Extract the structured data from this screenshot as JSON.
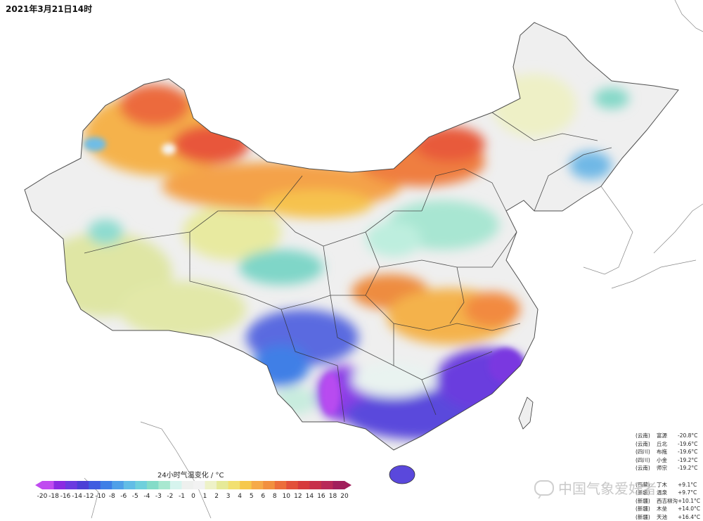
{
  "map": {
    "title": "2021年3月21日14时",
    "legend": {
      "title": "24小时气温变化 / °C",
      "ticks": [
        "-20",
        "-18",
        "-16",
        "-14",
        "-12",
        "-10",
        "-8",
        "-6",
        "-5",
        "-4",
        "-3",
        "-2",
        "-1",
        "0",
        "1",
        "2",
        "3",
        "4",
        "5",
        "6",
        "8",
        "10",
        "12",
        "14",
        "16",
        "18",
        "20"
      ],
      "colors": [
        "#c04cf0",
        "#8a2be2",
        "#6a3be0",
        "#4b3fd6",
        "#3f5ce0",
        "#3e7fe6",
        "#4fa0e8",
        "#62bde6",
        "#6fd0dc",
        "#84dcc8",
        "#a8e8d0",
        "#d6f4ee",
        "#eef0ee",
        "#f2f2f2",
        "#eef2c8",
        "#e6ea98",
        "#f2e070",
        "#f6c84c",
        "#f6aa48",
        "#f2903e",
        "#ec6e3a",
        "#e2503a",
        "#d63a3c",
        "#c72f4a",
        "#b82858",
        "#a11f5c"
      ]
    },
    "stats_cold": [
      {
        "region": "(云南)",
        "station": "富源",
        "value": "-20.8°C"
      },
      {
        "region": "(云南)",
        "station": "丘北",
        "value": "-19.6°C"
      },
      {
        "region": "(四川)",
        "station": "布拖",
        "value": "-19.6°C"
      },
      {
        "region": "(四川)",
        "station": "小金",
        "value": "-19.2°C"
      },
      {
        "region": "(云南)",
        "station": "师宗",
        "value": "-19.2°C"
      }
    ],
    "stats_warm": [
      {
        "region": "(西藏)",
        "station": "丁木",
        "value": "+9.1°C"
      },
      {
        "region": "(新疆)",
        "station": "温泉",
        "value": "+9.7°C"
      },
      {
        "region": "(新疆)",
        "station": "西吉柳沟",
        "value": "+10.1°C"
      },
      {
        "region": "(新疆)",
        "station": "木垒",
        "value": "+14.0°C"
      },
      {
        "region": "(新疆)",
        "station": "天池",
        "value": "+16.4°C"
      }
    ],
    "watermark": "中国气象爱好者",
    "icons": {
      "watermark": "speech-bubble-icon"
    }
  }
}
